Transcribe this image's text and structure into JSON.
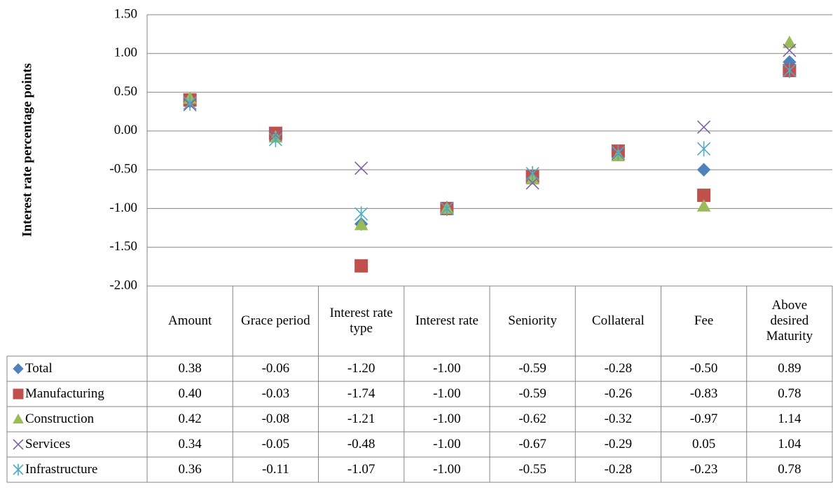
{
  "chart_data": {
    "type": "scatter",
    "y_label": "Interest rate percentage points",
    "categories": [
      "Amount",
      "Grace period",
      "Interest rate type",
      "Interest rate",
      "Seniority",
      "Collateral",
      "Fee",
      "Above desired Maturity"
    ],
    "ylim": [
      -2,
      1.5
    ],
    "yticks": [
      {
        "value": -2,
        "label": "-2.00"
      },
      {
        "value": -1.5,
        "label": "-1.50"
      },
      {
        "value": -1,
        "label": "-1.00"
      },
      {
        "value": -0.5,
        "label": "-0.50"
      },
      {
        "value": 0,
        "label": "0.00"
      },
      {
        "value": 0.5,
        "label": "0.50"
      },
      {
        "value": 1,
        "label": "1.00"
      },
      {
        "value": 1.5,
        "label": "1.50"
      }
    ],
    "grid": true,
    "series": [
      {
        "name": "Total",
        "color": "#4f81bd",
        "marker": "diamond",
        "values": [
          0.38,
          -0.06,
          -1.2,
          -1,
          -0.59,
          -0.28,
          -0.5,
          0.89
        ],
        "value_labels": [
          "0.38",
          "-0.06",
          "-1.20",
          "-1.00",
          "-0.59",
          "-0.28",
          "-0.50",
          "0.89"
        ]
      },
      {
        "name": "Manufacturing",
        "color": "#c0504d",
        "marker": "square",
        "values": [
          0.4,
          -0.03,
          -1.74,
          -1,
          -0.59,
          -0.26,
          -0.83,
          0.78
        ],
        "value_labels": [
          "0.40",
          "-0.03",
          "-1.74",
          "-1.00",
          "-0.59",
          "-0.26",
          "-0.83",
          "0.78"
        ]
      },
      {
        "name": "Construction",
        "color": "#9bbb59",
        "marker": "triangle",
        "values": [
          0.42,
          -0.08,
          -1.21,
          -1,
          -0.62,
          -0.32,
          -0.97,
          1.14
        ],
        "value_labels": [
          "0.42",
          "-0.08",
          "-1.21",
          "-1.00",
          "-0.62",
          "-0.32",
          "-0.97",
          "1.14"
        ]
      },
      {
        "name": "Services",
        "color": "#8064a2",
        "marker": "x",
        "values": [
          0.34,
          -0.05,
          -0.48,
          -1,
          -0.67,
          -0.29,
          0.05,
          1.04
        ],
        "value_labels": [
          "0.34",
          "-0.05",
          "-0.48",
          "-1.00",
          "-0.67",
          "-0.29",
          "0.05",
          "1.04"
        ]
      },
      {
        "name": "Infrastructure",
        "color": "#4bacc6",
        "marker": "asterisk",
        "values": [
          0.36,
          -0.11,
          -1.07,
          -1,
          -0.55,
          -0.28,
          -0.23,
          0.78
        ],
        "value_labels": [
          "0.36",
          "-0.11",
          "-1.07",
          "-1.00",
          "-0.55",
          "-0.28",
          "-0.23",
          "0.78"
        ]
      }
    ]
  }
}
